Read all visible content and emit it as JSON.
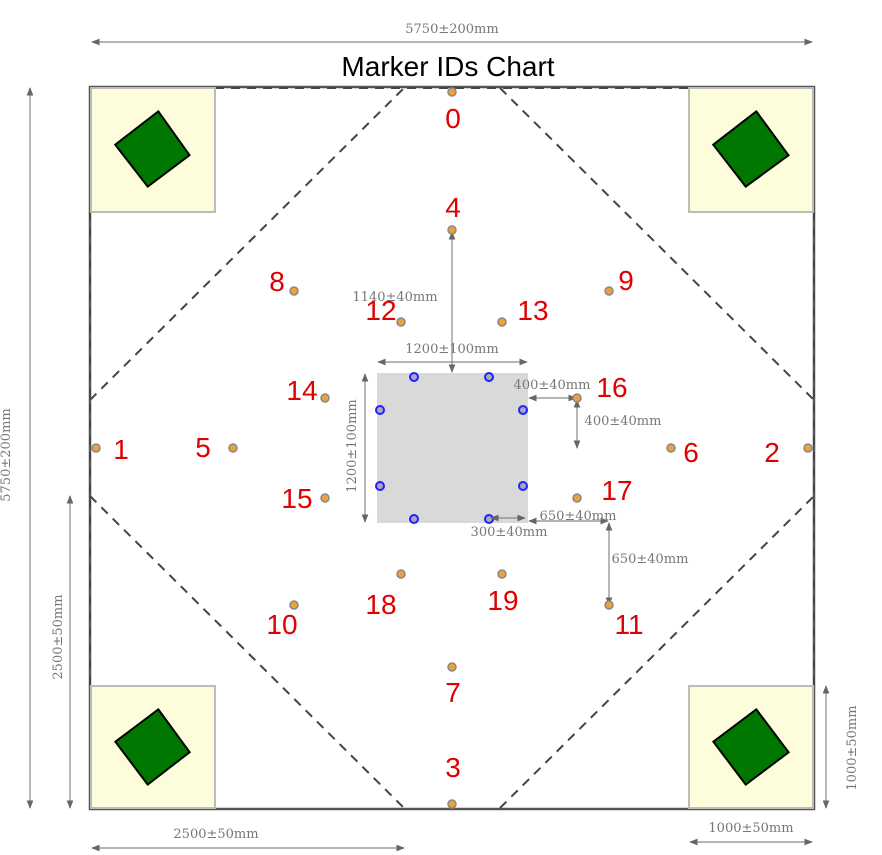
{
  "title": "Marker IDs Chart",
  "colors": {
    "marker_fill": "#e8a33a",
    "marker_stroke": "#888888",
    "label": "#e00000",
    "corner_zone": "#fdfddc",
    "diamond": "#007700",
    "center_square": "#d9d9d9",
    "blue_point": "#2222ff",
    "dimension": "#777777",
    "border": "#333333"
  },
  "dimensions": {
    "top_width": "5750±200mm",
    "left_height": "5750±200mm",
    "bottom_left": "2500±50mm",
    "left_lower": "2500±50mm",
    "bottom_right": "1000±50mm",
    "right_lower": "1000±50mm",
    "center_width": "1200±100mm",
    "center_height": "1200±100mm",
    "center_to_marker4": "1140±40mm",
    "m16_horizontal": "400±40mm",
    "m16_vertical": "400±40mm",
    "m11_horizontal": "650±40mm",
    "m11_vertical": "650±40mm",
    "blue_offset": "300±40mm"
  },
  "markers": [
    {
      "id": "0"
    },
    {
      "id": "1"
    },
    {
      "id": "2"
    },
    {
      "id": "3"
    },
    {
      "id": "4"
    },
    {
      "id": "5"
    },
    {
      "id": "6"
    },
    {
      "id": "7"
    },
    {
      "id": "8"
    },
    {
      "id": "9"
    },
    {
      "id": "10"
    },
    {
      "id": "11"
    },
    {
      "id": "12"
    },
    {
      "id": "13"
    },
    {
      "id": "14"
    },
    {
      "id": "15"
    },
    {
      "id": "16"
    },
    {
      "id": "17"
    },
    {
      "id": "18"
    },
    {
      "id": "19"
    }
  ]
}
